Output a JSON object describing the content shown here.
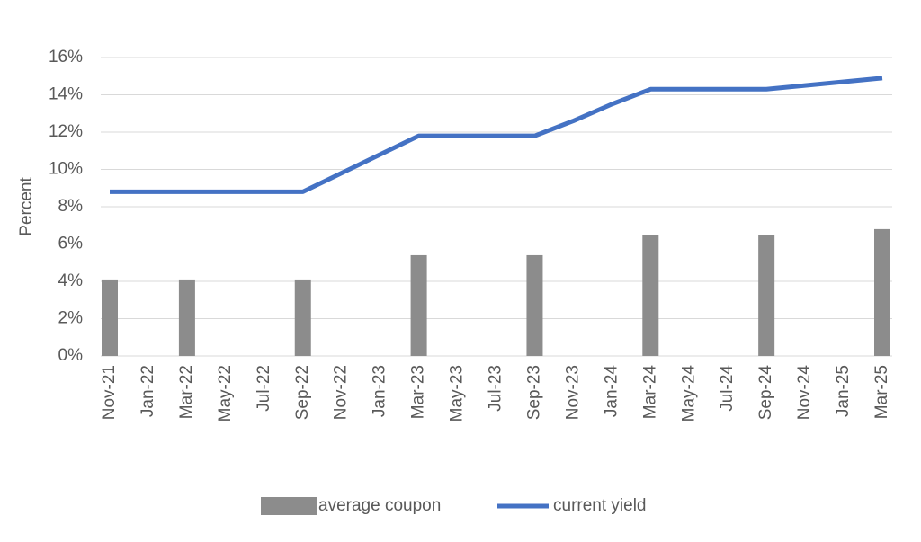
{
  "chart_data": {
    "type": "bar_line",
    "y_label": "Percent",
    "categories": [
      "Nov-21",
      "Jan-22",
      "Mar-22",
      "May-22",
      "Jul-22",
      "Sep-22",
      "Nov-22",
      "Jan-23",
      "Mar-23",
      "May-23",
      "Jul-23",
      "Sep-23",
      "Nov-23",
      "Jan-24",
      "Mar-24",
      "May-24",
      "Jul-24",
      "Sep-24",
      "Nov-24",
      "Jan-25",
      "Mar-25"
    ],
    "series": [
      {
        "name": "average coupon",
        "type": "bar",
        "color": "#8c8c8c",
        "values": [
          4.1,
          null,
          4.1,
          null,
          null,
          4.1,
          null,
          null,
          5.4,
          null,
          null,
          5.4,
          null,
          null,
          6.5,
          null,
          null,
          6.5,
          null,
          null,
          6.8
        ]
      },
      {
        "name": "current yield",
        "type": "line",
        "color": "#4472c4",
        "values": [
          8.8,
          8.8,
          8.8,
          8.8,
          8.8,
          8.8,
          9.8,
          10.8,
          11.8,
          11.8,
          11.8,
          11.8,
          12.6,
          13.5,
          14.3,
          14.3,
          14.3,
          14.3,
          14.5,
          14.7,
          14.9
        ]
      }
    ],
    "ylim": [
      0,
      16
    ],
    "yticks": [
      {
        "value": 0,
        "label": "0%"
      },
      {
        "value": 2,
        "label": "2%"
      },
      {
        "value": 4,
        "label": "4%"
      },
      {
        "value": 6,
        "label": "6%"
      },
      {
        "value": 8,
        "label": "8%"
      },
      {
        "value": 10,
        "label": "10%"
      },
      {
        "value": 12,
        "label": "12%"
      },
      {
        "value": 14,
        "label": "14%"
      },
      {
        "value": 16,
        "label": "16%"
      }
    ],
    "grid": true,
    "legend": "bottom"
  }
}
